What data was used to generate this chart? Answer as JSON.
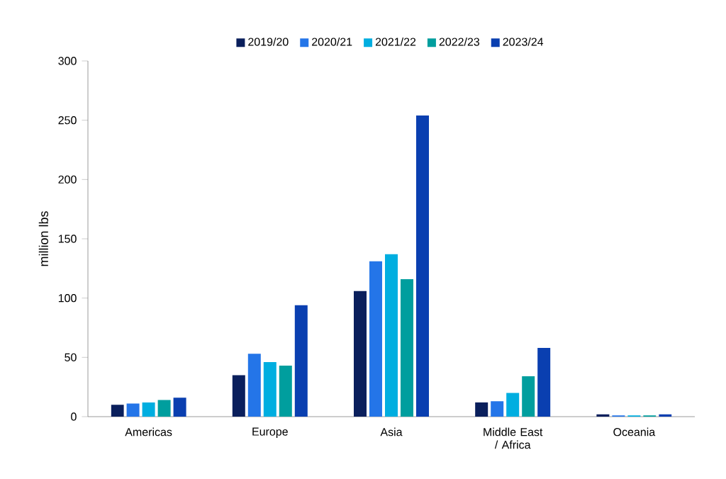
{
  "chart_data": {
    "type": "bar",
    "ylabel": "million lbs",
    "categories": [
      "Americas",
      "Europe",
      "Asia",
      "Middle East / Africa",
      "Oceania"
    ],
    "series": [
      {
        "name": "2019/20",
        "color": "#0a1f5c",
        "values": [
          10,
          35,
          106,
          12,
          2
        ]
      },
      {
        "name": "2020/21",
        "color": "#2475e8",
        "values": [
          11,
          53,
          131,
          13,
          1
        ]
      },
      {
        "name": "2021/22",
        "color": "#00aee0",
        "values": [
          12,
          46,
          137,
          20,
          1
        ]
      },
      {
        "name": "2022/23",
        "color": "#009e9e",
        "values": [
          14,
          43,
          116,
          34,
          1
        ]
      },
      {
        "name": "2023/24",
        "color": "#0a3fb0",
        "values": [
          16,
          94,
          254,
          58,
          2
        ]
      }
    ],
    "ylim": [
      0,
      300
    ],
    "yticks": [
      0,
      50,
      100,
      150,
      200,
      250,
      300
    ],
    "legend": "top",
    "grid": false
  }
}
